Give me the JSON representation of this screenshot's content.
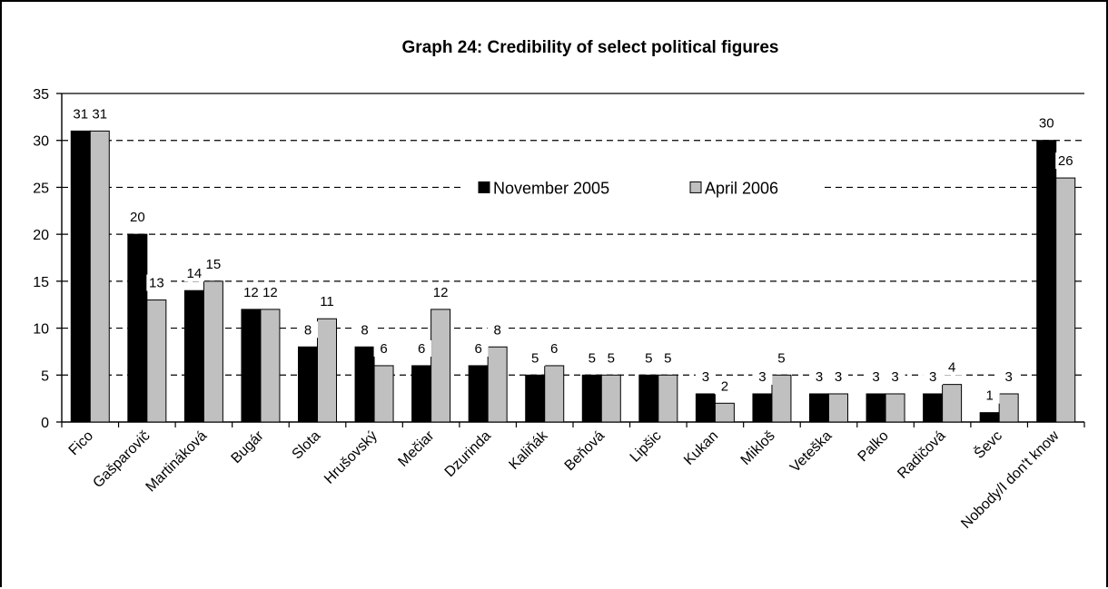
{
  "chart_data": {
    "type": "bar",
    "title": "Graph 24: Credibility of select political figures",
    "xlabel": "",
    "ylabel": "",
    "ylim": [
      0,
      35
    ],
    "yticks": [
      0,
      5,
      10,
      15,
      20,
      25,
      30,
      35
    ],
    "grid": "dashed horizontal",
    "legend_position": "top-center",
    "categories": [
      "Fico",
      "Gašparovič",
      "Martináková",
      "Bugár",
      "Slota",
      "Hrušovský",
      "Mečiar",
      "Dzurinda",
      "Kaliňák",
      "Beňová",
      "Lipšic",
      "Kukan",
      "Mikloš",
      "Veteška",
      "Palko",
      "Radičová",
      "Ševc",
      "Nobody/I don't know"
    ],
    "series": [
      {
        "name": "November 2005",
        "color": "#000000",
        "values": [
          31,
          20,
          14,
          12,
          8,
          8,
          6,
          6,
          5,
          5,
          5,
          3,
          3,
          3,
          3,
          3,
          1,
          30
        ]
      },
      {
        "name": "April 2006",
        "color": "#c0c0c0",
        "values": [
          31,
          13,
          15,
          12,
          11,
          6,
          12,
          8,
          6,
          5,
          5,
          2,
          5,
          3,
          3,
          4,
          3,
          26
        ]
      }
    ]
  }
}
